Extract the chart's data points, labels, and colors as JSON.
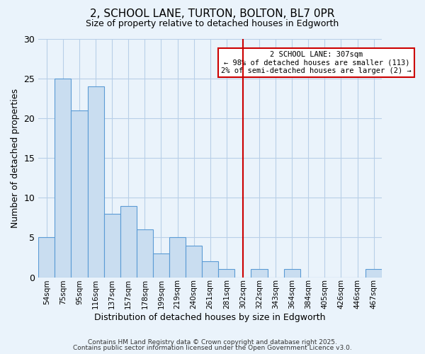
{
  "title": "2, SCHOOL LANE, TURTON, BOLTON, BL7 0PR",
  "subtitle": "Size of property relative to detached houses in Edgworth",
  "xlabel": "Distribution of detached houses by size in Edgworth",
  "ylabel": "Number of detached properties",
  "bar_labels": [
    "54sqm",
    "75sqm",
    "95sqm",
    "116sqm",
    "137sqm",
    "157sqm",
    "178sqm",
    "199sqm",
    "219sqm",
    "240sqm",
    "261sqm",
    "281sqm",
    "302sqm",
    "322sqm",
    "343sqm",
    "364sqm",
    "384sqm",
    "405sqm",
    "426sqm",
    "446sqm",
    "467sqm"
  ],
  "bar_values": [
    5,
    25,
    21,
    24,
    8,
    9,
    6,
    3,
    5,
    4,
    2,
    1,
    0,
    1,
    0,
    1,
    0,
    0,
    0,
    0,
    1
  ],
  "bar_color": "#c9ddf0",
  "bar_edge_color": "#5b9bd5",
  "grid_color": "#b8cfe8",
  "bg_color": "#eaf3fb",
  "vline_x_index": 12,
  "vline_color": "#cc0000",
  "annotation_text": "2 SCHOOL LANE: 307sqm\n← 98% of detached houses are smaller (113)\n2% of semi-detached houses are larger (2) →",
  "annotation_box_color": "#ffffff",
  "annotation_box_edge_color": "#cc0000",
  "ylim": [
    0,
    30
  ],
  "yticks": [
    0,
    5,
    10,
    15,
    20,
    25,
    30
  ],
  "footer1": "Contains HM Land Registry data © Crown copyright and database right 2025.",
  "footer2": "Contains public sector information licensed under the Open Government Licence v3.0."
}
